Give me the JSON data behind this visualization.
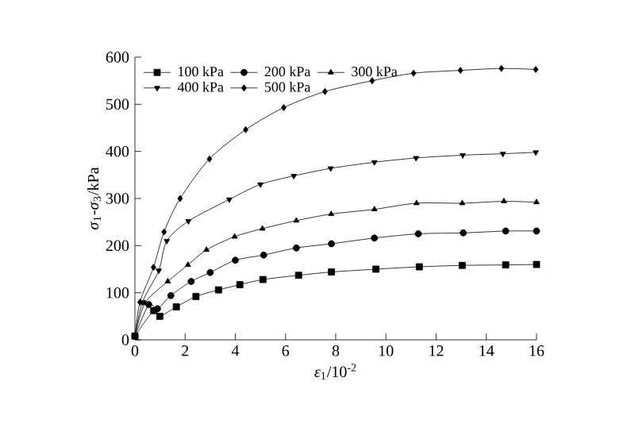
{
  "chart_data": {
    "type": "line",
    "xlabel": "*ε*$_{1}$/10$^{-2}$",
    "ylabel": "*σ*$_{1}$-*σ*$_{3}$/kPa",
    "xlim": [
      0,
      16
    ],
    "ylim": [
      0,
      600
    ],
    "xticks": [
      0,
      2,
      4,
      6,
      8,
      10,
      12,
      14,
      16
    ],
    "yticks": [
      0,
      100,
      200,
      300,
      400,
      500,
      600
    ],
    "legend": "top left",
    "grid": false,
    "line_style": "solid",
    "series": [
      {
        "name": "100 kPa",
        "color": "#000000",
        "marker": "square",
        "x": [
          0,
          0.75,
          0.99,
          1.65,
          2.43,
          3.33,
          4.18,
          5.1,
          6.52,
          7.83,
          9.6,
          11.33,
          13.04,
          14.77,
          16
        ],
        "values": [
          8,
          62,
          50,
          70,
          92,
          106,
          117,
          128,
          137,
          144,
          150,
          155,
          158,
          159,
          160
        ]
      },
      {
        "name": "200 kPa",
        "color": "#000000",
        "marker": "circle",
        "x": [
          0,
          0.55,
          0.9,
          1.43,
          2.24,
          3.0,
          4.0,
          5.13,
          6.43,
          7.83,
          9.54,
          11.29,
          13.08,
          14.77,
          16
        ],
        "values": [
          8,
          75,
          66,
          94,
          124,
          143,
          169,
          180,
          195,
          204,
          216,
          225,
          227,
          231,
          231
        ]
      },
      {
        "name": "300 kPa",
        "color": "#000000",
        "marker": "triangle",
        "x": [
          0,
          0.4,
          1.31,
          2.11,
          2.85,
          3.97,
          5.08,
          6.43,
          7.82,
          9.54,
          11.22,
          13.04,
          14.7,
          16
        ],
        "values": [
          8,
          78,
          124,
          159,
          191,
          219,
          236,
          253,
          267,
          277,
          290,
          290,
          294,
          292
        ]
      },
      {
        "name": "400 kPa",
        "color": "#000000",
        "marker": "triangle down",
        "x": [
          0,
          0.3,
          0.95,
          1.27,
          2.13,
          3.76,
          5.0,
          6.33,
          7.8,
          9.54,
          11.2,
          13.06,
          14.66,
          15.97
        ],
        "values": [
          8,
          80,
          147,
          210,
          252,
          298,
          330,
          348,
          364,
          377,
          386,
          392,
          395,
          398
        ]
      },
      {
        "name": "500 kPa",
        "color": "#000000",
        "marker": "diamond",
        "x": [
          0,
          0.2,
          0.74,
          1.16,
          1.8,
          2.97,
          4.41,
          5.93,
          7.57,
          9.45,
          11.1,
          12.97,
          14.6,
          15.97
        ],
        "values": [
          8,
          80,
          154,
          229,
          300,
          384,
          446,
          493,
          527,
          550,
          566,
          572,
          576,
          574
        ]
      }
    ]
  }
}
